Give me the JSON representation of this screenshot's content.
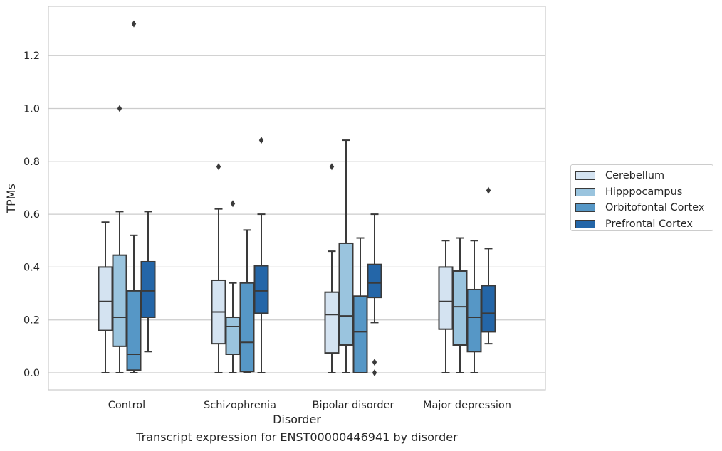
{
  "chart_data": {
    "type": "boxplot",
    "xlabel": "Disorder",
    "ylabel": "TPMs",
    "caption": "Transcript expression for ENST00000446941 by disorder",
    "categories": [
      "Control",
      "Schizophrenia",
      "Bipolar disorder",
      "Major depression"
    ],
    "ylim": [
      -0.065,
      1.39
    ],
    "yticks": [
      "0.0",
      "0.2",
      "0.4",
      "0.6",
      "0.8",
      "1.0",
      "1.2"
    ],
    "grid": true,
    "legend_position": "right",
    "series": [
      {
        "name": "Cerebellum",
        "color": "#d4e3f1",
        "boxes": [
          {
            "whislo": 0.0,
            "q1": 0.16,
            "med": 0.27,
            "q3": 0.4,
            "whishi": 0.57,
            "fliers": []
          },
          {
            "whislo": 0.0,
            "q1": 0.11,
            "med": 0.23,
            "q3": 0.35,
            "whishi": 0.62,
            "fliers": [
              0.78
            ]
          },
          {
            "whislo": 0.0,
            "q1": 0.075,
            "med": 0.22,
            "q3": 0.305,
            "whishi": 0.46,
            "fliers": [
              0.78
            ]
          },
          {
            "whislo": 0.0,
            "q1": 0.165,
            "med": 0.27,
            "q3": 0.4,
            "whishi": 0.5,
            "fliers": []
          }
        ]
      },
      {
        "name": "Hipppocampus",
        "color": "#9ac4de",
        "boxes": [
          {
            "whislo": 0.0,
            "q1": 0.1,
            "med": 0.21,
            "q3": 0.445,
            "whishi": 0.61,
            "fliers": [
              1.0
            ]
          },
          {
            "whislo": 0.0,
            "q1": 0.07,
            "med": 0.175,
            "q3": 0.21,
            "whishi": 0.34,
            "fliers": [
              0.64
            ]
          },
          {
            "whislo": 0.0,
            "q1": 0.105,
            "med": 0.215,
            "q3": 0.49,
            "whishi": 0.88,
            "fliers": []
          },
          {
            "whislo": 0.0,
            "q1": 0.105,
            "med": 0.25,
            "q3": 0.385,
            "whishi": 0.51,
            "fliers": []
          }
        ]
      },
      {
        "name": "Orbitofontal Cortex",
        "color": "#5697c6",
        "boxes": [
          {
            "whislo": 0.0,
            "q1": 0.01,
            "med": 0.07,
            "q3": 0.31,
            "whishi": 0.52,
            "fliers": [
              1.32
            ]
          },
          {
            "whislo": 0.0,
            "q1": 0.005,
            "med": 0.115,
            "q3": 0.34,
            "whishi": 0.54,
            "fliers": []
          },
          {
            "whislo": 0.0,
            "q1": 0.0,
            "med": 0.155,
            "q3": 0.29,
            "whishi": 0.51,
            "fliers": []
          },
          {
            "whislo": 0.0,
            "q1": 0.08,
            "med": 0.21,
            "q3": 0.315,
            "whishi": 0.5,
            "fliers": []
          }
        ]
      },
      {
        "name": "Prefrontal Cortex",
        "color": "#2466a8",
        "boxes": [
          {
            "whislo": 0.08,
            "q1": 0.21,
            "med": 0.31,
            "q3": 0.42,
            "whishi": 0.61,
            "fliers": []
          },
          {
            "whislo": 0.0,
            "q1": 0.225,
            "med": 0.31,
            "q3": 0.405,
            "whishi": 0.6,
            "fliers": [
              0.88
            ]
          },
          {
            "whislo": 0.19,
            "q1": 0.285,
            "med": 0.34,
            "q3": 0.41,
            "whishi": 0.6,
            "fliers": [
              0.04,
              0.0
            ]
          },
          {
            "whislo": 0.11,
            "q1": 0.155,
            "med": 0.225,
            "q3": 0.33,
            "whishi": 0.47,
            "fliers": [
              0.69
            ]
          }
        ]
      }
    ]
  }
}
